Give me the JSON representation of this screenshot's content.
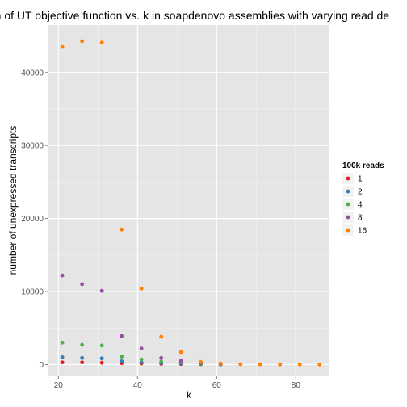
{
  "chart_data": {
    "type": "scatter",
    "title": "on of UT objective function vs. k in soapdenovo assemblies with varying read de",
    "xlabel": "k",
    "ylabel": "number of unexpressed transcripts",
    "xlim": [
      17.5,
      88.5
    ],
    "ylim": [
      -1500,
      46500
    ],
    "x_ticks": [
      20,
      40,
      60,
      80
    ],
    "y_ticks": [
      0,
      10000,
      20000,
      30000,
      40000
    ],
    "x_tick_labels": [
      "20",
      "40",
      "60",
      "80"
    ],
    "y_tick_labels": [
      "0",
      "10000",
      "20000",
      "30000",
      "40000"
    ],
    "grid": true,
    "legend": {
      "title": "100k reads",
      "position": "right"
    },
    "series": [
      {
        "name": "1",
        "color": "#e41a1c",
        "points": [
          [
            21,
            300
          ],
          [
            26,
            300
          ],
          [
            31,
            250
          ],
          [
            36,
            200
          ],
          [
            41,
            150
          ],
          [
            46,
            100
          ],
          [
            51,
            80
          ],
          [
            56,
            50
          ],
          [
            61,
            20
          ]
        ]
      },
      {
        "name": "2",
        "color": "#377eb8",
        "points": [
          [
            21,
            1000
          ],
          [
            26,
            900
          ],
          [
            31,
            850
          ],
          [
            36,
            450
          ],
          [
            41,
            300
          ],
          [
            46,
            200
          ],
          [
            51,
            150
          ],
          [
            56,
            80
          ],
          [
            61,
            30
          ]
        ]
      },
      {
        "name": "4",
        "color": "#4daf4a",
        "points": [
          [
            21,
            3000
          ],
          [
            26,
            2700
          ],
          [
            31,
            2600
          ],
          [
            36,
            1100
          ],
          [
            41,
            700
          ],
          [
            46,
            400
          ],
          [
            51,
            300
          ],
          [
            56,
            150
          ],
          [
            61,
            50
          ]
        ]
      },
      {
        "name": "8",
        "color": "#984ea3",
        "points": [
          [
            21,
            12200
          ],
          [
            26,
            11000
          ],
          [
            31,
            10100
          ],
          [
            36,
            3900
          ],
          [
            41,
            2200
          ],
          [
            46,
            900
          ],
          [
            51,
            500
          ],
          [
            56,
            250
          ],
          [
            61,
            80
          ]
        ]
      },
      {
        "name": "16",
        "color": "#ff7f00",
        "points": [
          [
            21,
            43500
          ],
          [
            26,
            44300
          ],
          [
            31,
            44100
          ],
          [
            36,
            18500
          ],
          [
            41,
            10400
          ],
          [
            46,
            3800
          ],
          [
            51,
            1700
          ],
          [
            56,
            350
          ],
          [
            61,
            150
          ],
          [
            66,
            50
          ],
          [
            71,
            30
          ],
          [
            76,
            20
          ],
          [
            81,
            10
          ],
          [
            86,
            10
          ]
        ]
      }
    ]
  }
}
